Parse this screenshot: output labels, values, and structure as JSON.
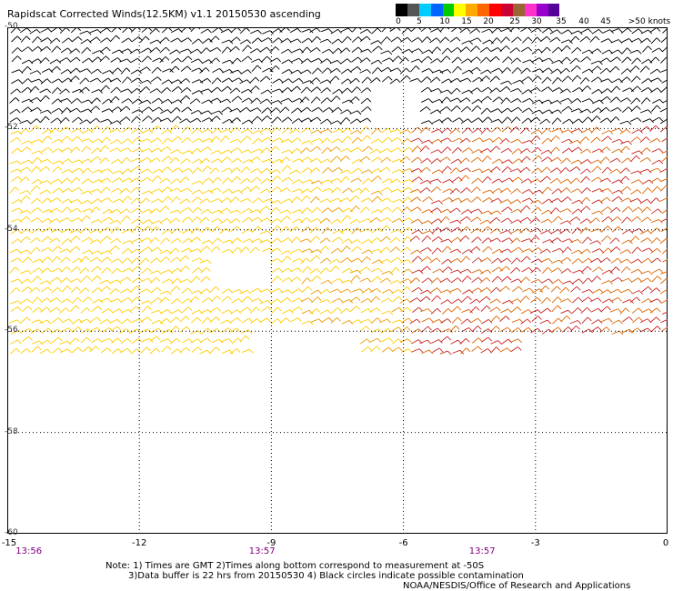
{
  "title": "Rapidscat Corrected Winds(12.5KM) v1.1 20150530 ascending",
  "colorbar": {
    "labels": [
      "0",
      "5",
      "10",
      "15",
      "20",
      "25",
      "30",
      "35",
      "40",
      "45",
      ">50 knots"
    ],
    "colors": [
      "#000000",
      "#555555",
      "#00ccff",
      "#0066ff",
      "#00cc00",
      "#ffff00",
      "#ffaa00",
      "#ff6600",
      "#ff0000",
      "#cc0033",
      "#996633",
      "#ff33cc",
      "#9900cc",
      "#550099"
    ]
  },
  "chart_data": {
    "type": "wind_barbs",
    "ylim": [
      -60,
      -50
    ],
    "xlim": [
      -15,
      0
    ],
    "y_ticks": [
      "-50",
      "-52",
      "-54",
      "-56",
      "-58",
      "-60"
    ],
    "x_ticks": [
      "-15",
      "-12",
      "-9",
      "-6",
      "-3",
      "0"
    ],
    "times": [
      {
        "lon": -14.8,
        "label": "13:56"
      },
      {
        "lon": -9.5,
        "label": "13:57"
      },
      {
        "lon": -4.5,
        "label": "13:57"
      }
    ],
    "regions": [
      {
        "lat_range": [
          -52.0,
          -50.0
        ],
        "speed_knots": 12,
        "color": "#000000"
      },
      {
        "lat_range": [
          -56.5,
          -52.0
        ],
        "lon_range": [
          -15,
          -6
        ],
        "speed_knots": 22,
        "color": "#ffcc00"
      },
      {
        "lat_range": [
          -56.5,
          -52.0
        ],
        "lon_range": [
          -6,
          0
        ],
        "speed_knots": 32,
        "color": "#dd4400"
      }
    ]
  },
  "notes": [
    "Note: 1) Times are GMT 2)Times along bottom correspond to measurement at -50S",
    "3)Data buffer is 22 hrs from 20150530 4) Black circles indicate possible contamination",
    "NOAA/NESDIS/Office of Research and Applications"
  ]
}
